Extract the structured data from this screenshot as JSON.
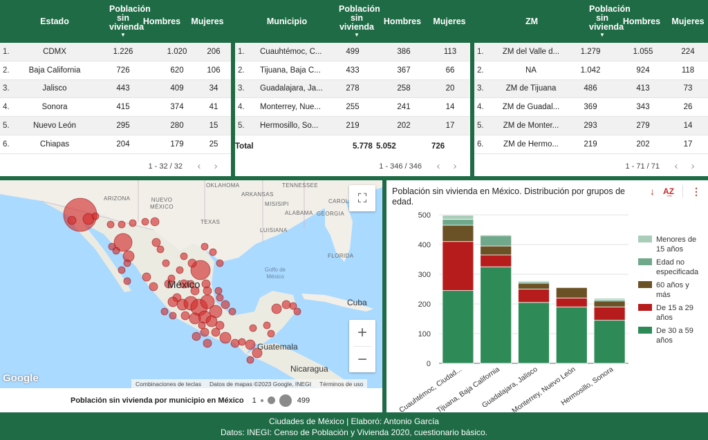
{
  "table_estado": {
    "headers": [
      "Estado",
      "Población sin vivienda",
      "Hombres",
      "Mujeres"
    ],
    "rows": [
      {
        "idx": "1.",
        "name": "CDMX",
        "pop": "1.226",
        "h": "1.020",
        "m": "206"
      },
      {
        "idx": "2.",
        "name": "Baja California",
        "pop": "726",
        "h": "620",
        "m": "106"
      },
      {
        "idx": "3.",
        "name": "Jalisco",
        "pop": "443",
        "h": "409",
        "m": "34"
      },
      {
        "idx": "4.",
        "name": "Sonora",
        "pop": "415",
        "h": "374",
        "m": "41"
      },
      {
        "idx": "5.",
        "name": "Nuevo León",
        "pop": "295",
        "h": "280",
        "m": "15"
      },
      {
        "idx": "6.",
        "name": "Chiapas",
        "pop": "204",
        "h": "179",
        "m": "25"
      }
    ],
    "pager": "1 - 32 / 32"
  },
  "table_municipio": {
    "headers": [
      "Municipio",
      "Población sin vivienda",
      "Hombres",
      "Mujeres"
    ],
    "rows": [
      {
        "idx": "1.",
        "name": "Cuauhtémoc, C...",
        "pop": "499",
        "h": "386",
        "m": "113"
      },
      {
        "idx": "2.",
        "name": "Tijuana, Baja C...",
        "pop": "433",
        "h": "367",
        "m": "66"
      },
      {
        "idx": "3.",
        "name": "Guadalajara, Ja...",
        "pop": "278",
        "h": "258",
        "m": "20"
      },
      {
        "idx": "4.",
        "name": "Monterrey, Nue...",
        "pop": "255",
        "h": "241",
        "m": "14"
      },
      {
        "idx": "5.",
        "name": "Hermosillo, So...",
        "pop": "219",
        "h": "202",
        "m": "17"
      }
    ],
    "total": {
      "label": "Total",
      "pop": "5.778",
      "h": "5.052",
      "m": "726"
    },
    "pager": "1 - 346 / 346"
  },
  "table_zm": {
    "headers": [
      "ZM",
      "Población sin vivienda",
      "Hombres",
      "Mujeres"
    ],
    "rows": [
      {
        "idx": "1.",
        "name": "ZM del Valle d...",
        "pop": "1.279",
        "h": "1.055",
        "m": "224"
      },
      {
        "idx": "2.",
        "name": "NA",
        "pop": "1.042",
        "h": "924",
        "m": "118"
      },
      {
        "idx": "3.",
        "name": "ZM de Tijuana",
        "pop": "486",
        "h": "413",
        "m": "73"
      },
      {
        "idx": "4.",
        "name": "ZM de Guadal...",
        "pop": "369",
        "h": "343",
        "m": "26"
      },
      {
        "idx": "5.",
        "name": "ZM de Monter...",
        "pop": "293",
        "h": "279",
        "m": "14"
      },
      {
        "idx": "6.",
        "name": "ZM de Hermo...",
        "pop": "219",
        "h": "202",
        "m": "17"
      }
    ],
    "pager": "1 - 71 / 71"
  },
  "map": {
    "labels": {
      "oklahoma": "OKLAHOMA",
      "tennessee": "TENNESSEE",
      "arizona": "ARIZONA",
      "nuevo_mexico": "NUEVO MÉXICO",
      "misisipi": "MISISIPI",
      "arkansas": "ARKANSAS",
      "alabama": "ALABAMA",
      "carolina": "CAROL",
      "georgia": "GEORGIA",
      "texas": "TEXAS",
      "luisiana": "LUISIANA",
      "florida": "FLORIDA",
      "golfo": "Golfo de México",
      "mexico": "México",
      "cuba": "Cuba",
      "guatemala": "Guatemala",
      "nicaragua": "Nicaragua"
    },
    "google": "Google",
    "attribution": {
      "shortcuts": "Combinaciones de teclas",
      "data": "Datos de mapas ©2023 Google, INEGI",
      "terms": "Términos de uso"
    },
    "legend": {
      "title": "Población sin vivienda por municipio en México",
      "min": "1",
      "max": "499"
    },
    "icons": {
      "fullscreen": "fullscreen-icon",
      "zoom_in": "plus-icon",
      "zoom_out": "minus-icon"
    }
  },
  "chart_data": {
    "type": "bar",
    "stacked": true,
    "title": "Población sin vivienda en México. Distribución por grupos de edad.",
    "categories": [
      "Cuauhtémoc, Ciudad...",
      "Tijuana, Baja California",
      "Guadalajara, Jalisco",
      "Monterrey, Nuevo León",
      "Hermosillo, Sonora"
    ],
    "series": [
      {
        "name": "De 30 a 59 años",
        "color": "#2e8a57",
        "values": [
          245,
          325,
          205,
          190,
          145
        ]
      },
      {
        "name": "De 15 a 29 años",
        "color": "#b71c1c",
        "values": [
          165,
          40,
          45,
          30,
          45
        ]
      },
      {
        "name": "60 años y más",
        "color": "#6b5226",
        "values": [
          55,
          30,
          20,
          35,
          20
        ]
      },
      {
        "name": "Edad no especificada",
        "color": "#6fa88a",
        "values": [
          20,
          35,
          5,
          0,
          5
        ]
      },
      {
        "name": "Menores de 15 años",
        "color": "#a9cdb9",
        "values": [
          14,
          3,
          3,
          0,
          4
        ]
      }
    ],
    "legend_order": [
      "Menores de 15 años",
      "Edad no especificada",
      "60 años y más",
      "De 15 a 29 años",
      "De 30 a 59 años"
    ],
    "ylim": [
      0,
      500
    ],
    "yticks": [
      "0",
      "100",
      "200",
      "300",
      "400",
      "500"
    ],
    "grid": true,
    "legend": "right"
  },
  "footer": {
    "line1": "Ciudades de México | Elaboró: Antonio García",
    "line2": "Datos: INEGI: Censo de Población y Vivienda 2020, cuestionario básico."
  }
}
